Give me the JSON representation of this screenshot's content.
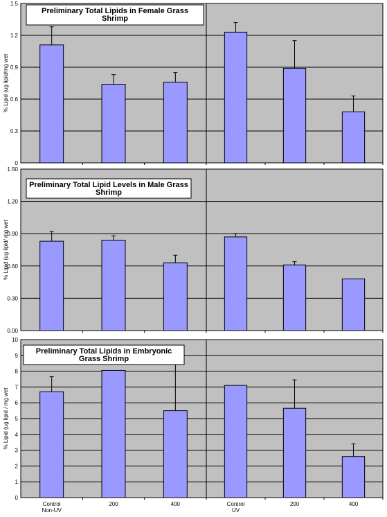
{
  "chart_data": [
    {
      "type": "bar",
      "title": "Preliminary Total Lipids in Female Grass Shrimp",
      "title_lines": [
        "Preliminary Total Lipids in Female Grass",
        "Shrimp"
      ],
      "ylabel": "% Lipid (ug lipid/mg wet",
      "ylim": [
        0,
        1.5
      ],
      "yticks": [
        "0",
        "0.3",
        "0.6",
        "0.9",
        "1.2",
        "1.5"
      ],
      "grid": true,
      "background": "#c0c0c0",
      "bar_color": "#9999ff",
      "categories": [
        "",
        "",
        "",
        "",
        "",
        ""
      ],
      "groups": [
        {
          "values": [
            1.11,
            0.74,
            0.76
          ],
          "error_upper": [
            1.28,
            0.83,
            0.85
          ]
        },
        {
          "values": [
            1.23,
            0.89,
            0.48
          ],
          "error_upper": [
            1.32,
            1.15,
            0.63
          ]
        }
      ]
    },
    {
      "type": "bar",
      "title": "Preliminary Total Lipid Levels in Male Grass Shrimp",
      "title_lines": [
        "Preliminary Total Lipid Levels in Male Grass",
        "Shrimp"
      ],
      "ylabel": "% Lipid (ug lipid/ mg wet",
      "ylim": [
        0,
        1.5
      ],
      "yticks": [
        "0.00",
        "0.30",
        "0.60",
        "0.90",
        "1.20",
        "1.50"
      ],
      "grid": true,
      "background": "#c0c0c0",
      "bar_color": "#9999ff",
      "categories": [
        "",
        "",
        "",
        "",
        "",
        ""
      ],
      "groups": [
        {
          "values": [
            0.83,
            0.84,
            0.63
          ],
          "error_upper": [
            0.92,
            0.88,
            0.7
          ]
        },
        {
          "values": [
            0.87,
            0.61,
            0.48
          ],
          "error_upper": [
            0.9,
            0.64,
            null
          ]
        }
      ]
    },
    {
      "type": "bar",
      "title": "Preliminary Total Lipids in Embryonic Grass Shrimp",
      "title_lines": [
        "Preliminary Total Lipids in Embryonic",
        "Grass Shrimp"
      ],
      "ylabel": "% Lipid (ug lipid / mg wet",
      "ylim": [
        0,
        10
      ],
      "yticks": [
        "0",
        "1",
        "2",
        "3",
        "4",
        "5",
        "6",
        "7",
        "8",
        "9",
        "10"
      ],
      "grid": true,
      "background": "#c0c0c0",
      "bar_color": "#9999ff",
      "categories": [
        "Control\nNon-UV",
        "200",
        "400",
        "Control\nUV",
        "200",
        "400"
      ],
      "groups": [
        {
          "values": [
            6.7,
            8.05,
            5.5
          ],
          "error_upper": [
            7.65,
            null,
            8.9
          ]
        },
        {
          "values": [
            7.1,
            5.65,
            2.6
          ],
          "error_upper": [
            null,
            7.45,
            3.4
          ]
        }
      ]
    }
  ]
}
